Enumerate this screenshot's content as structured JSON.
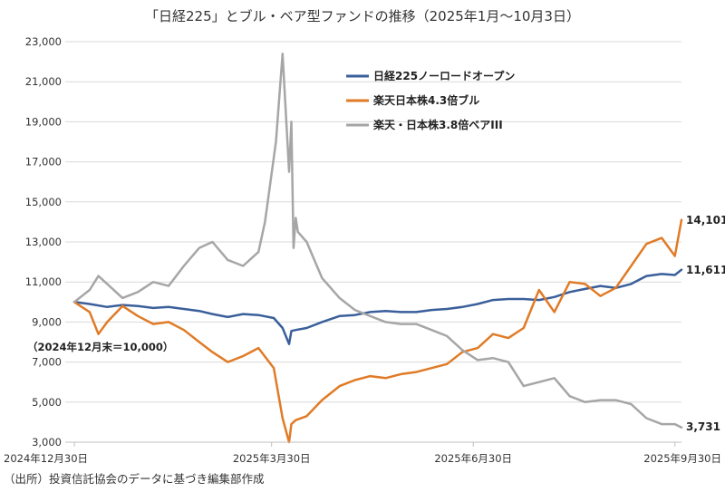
{
  "chart_data": {
    "type": "line",
    "title": "「日経225」とブル・ベア型ファンドの推移（2025年1月〜10月3日）",
    "ylim": [
      3000,
      23000
    ],
    "yticks": [
      3000,
      5000,
      7000,
      9000,
      11000,
      13000,
      15000,
      17000,
      19000,
      21000,
      23000
    ],
    "ytick_labels": [
      "3,000",
      "5,000",
      "7,000",
      "9,000",
      "11,000",
      "13,000",
      "15,000",
      "17,000",
      "19,000",
      "21,000",
      "23,000"
    ],
    "xlim": [
      "2024-12-30",
      "2025-10-03"
    ],
    "xticks": [
      "2024-12-30",
      "2025-03-30",
      "2025-06-30",
      "2025-09-30"
    ],
    "xtick_labels": [
      "2024年12月30日",
      "2025年3月30日",
      "2025年6月30日",
      "2025年9月30日"
    ],
    "grid": "horizontal",
    "legend_position": "top-center",
    "annotation": "（2024年12月末＝10,000）",
    "end_labels": [
      "14,101",
      "11,611",
      "3,731"
    ],
    "series": [
      {
        "name": "日経225ノーロードオープン",
        "color": "#3a5f9a",
        "x": [
          "2024-12-30",
          "2025-01-06",
          "2025-01-14",
          "2025-01-21",
          "2025-01-28",
          "2025-02-04",
          "2025-02-11",
          "2025-02-18",
          "2025-02-25",
          "2025-03-03",
          "2025-03-10",
          "2025-03-17",
          "2025-03-24",
          "2025-03-31",
          "2025-04-04",
          "2025-04-07",
          "2025-04-08",
          "2025-04-10",
          "2025-04-15",
          "2025-04-22",
          "2025-04-30",
          "2025-05-07",
          "2025-05-14",
          "2025-05-21",
          "2025-05-28",
          "2025-06-04",
          "2025-06-11",
          "2025-06-18",
          "2025-06-25",
          "2025-07-02",
          "2025-07-09",
          "2025-07-16",
          "2025-07-23",
          "2025-07-30",
          "2025-08-06",
          "2025-08-13",
          "2025-08-20",
          "2025-08-27",
          "2025-09-03",
          "2025-09-10",
          "2025-09-17",
          "2025-09-24",
          "2025-09-30",
          "2025-10-03"
        ],
        "values": [
          10000,
          9900,
          9750,
          9850,
          9800,
          9700,
          9750,
          9650,
          9550,
          9400,
          9250,
          9400,
          9350,
          9200,
          8700,
          7900,
          8550,
          8600,
          8700,
          9000,
          9300,
          9350,
          9500,
          9550,
          9500,
          9500,
          9600,
          9650,
          9750,
          9900,
          10100,
          10150,
          10150,
          10100,
          10250,
          10500,
          10650,
          10800,
          10700,
          10900,
          11300,
          11400,
          11350,
          11611
        ]
      },
      {
        "name": "楽天日本株4.3倍ブル",
        "color": "#e07b27",
        "x": [
          "2024-12-30",
          "2025-01-06",
          "2025-01-10",
          "2025-01-14",
          "2025-01-21",
          "2025-01-28",
          "2025-02-04",
          "2025-02-11",
          "2025-02-18",
          "2025-02-25",
          "2025-03-03",
          "2025-03-10",
          "2025-03-17",
          "2025-03-24",
          "2025-03-31",
          "2025-04-04",
          "2025-04-07",
          "2025-04-08",
          "2025-04-10",
          "2025-04-15",
          "2025-04-22",
          "2025-04-30",
          "2025-05-07",
          "2025-05-14",
          "2025-05-21",
          "2025-05-28",
          "2025-06-04",
          "2025-06-11",
          "2025-06-18",
          "2025-06-25",
          "2025-07-02",
          "2025-07-09",
          "2025-07-16",
          "2025-07-23",
          "2025-07-30",
          "2025-08-06",
          "2025-08-13",
          "2025-08-20",
          "2025-08-27",
          "2025-09-03",
          "2025-09-10",
          "2025-09-17",
          "2025-09-24",
          "2025-09-30",
          "2025-10-03"
        ],
        "values": [
          10000,
          9500,
          8400,
          9000,
          9800,
          9300,
          8900,
          9000,
          8600,
          8000,
          7500,
          7000,
          7300,
          7700,
          6700,
          4200,
          3000,
          3900,
          4100,
          4300,
          5100,
          5800,
          6100,
          6300,
          6200,
          6400,
          6500,
          6700,
          6900,
          7500,
          7700,
          8400,
          8200,
          8700,
          10600,
          9500,
          11000,
          10900,
          10300,
          10700,
          11800,
          12900,
          13200,
          12300,
          14101
        ]
      },
      {
        "name": "楽天・日本株3.8倍ベアIII",
        "color": "#a6a6a6",
        "x": [
          "2024-12-30",
          "2025-01-06",
          "2025-01-10",
          "2025-01-14",
          "2025-01-21",
          "2025-01-28",
          "2025-02-04",
          "2025-02-11",
          "2025-02-18",
          "2025-02-25",
          "2025-03-03",
          "2025-03-10",
          "2025-03-17",
          "2025-03-24",
          "2025-03-27",
          "2025-04-01",
          "2025-04-04",
          "2025-04-07",
          "2025-04-08",
          "2025-04-09",
          "2025-04-10",
          "2025-04-11",
          "2025-04-15",
          "2025-04-22",
          "2025-04-30",
          "2025-05-07",
          "2025-05-14",
          "2025-05-21",
          "2025-05-28",
          "2025-06-04",
          "2025-06-11",
          "2025-06-18",
          "2025-06-25",
          "2025-07-02",
          "2025-07-09",
          "2025-07-16",
          "2025-07-23",
          "2025-07-30",
          "2025-08-06",
          "2025-08-13",
          "2025-08-20",
          "2025-08-27",
          "2025-09-03",
          "2025-09-10",
          "2025-09-17",
          "2025-09-24",
          "2025-09-30",
          "2025-10-03"
        ],
        "values": [
          10000,
          10600,
          11300,
          10900,
          10200,
          10500,
          11000,
          10800,
          11800,
          12700,
          13000,
          12100,
          11800,
          12500,
          14000,
          18000,
          22400,
          16500,
          19000,
          12700,
          14200,
          13500,
          13000,
          11200,
          10200,
          9600,
          9300,
          9000,
          8900,
          8900,
          8600,
          8300,
          7600,
          7100,
          7200,
          7000,
          5800,
          6000,
          6200,
          5300,
          5000,
          5100,
          5100,
          4900,
          4200,
          3900,
          3900,
          3731
        ]
      }
    ]
  },
  "source": "（出所）投資信託協会のデータに基づき編集部作成"
}
